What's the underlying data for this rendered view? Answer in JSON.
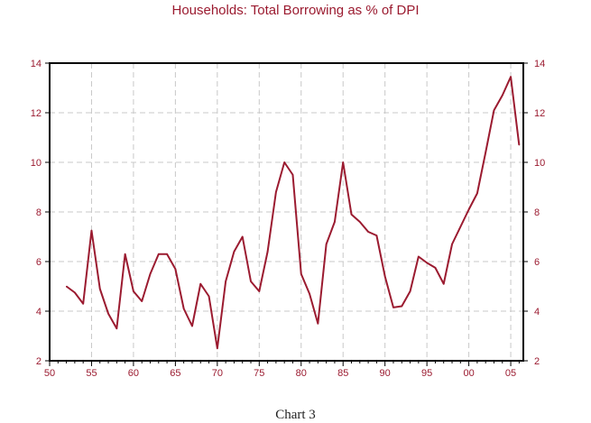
{
  "chart_data": {
    "type": "line",
    "title": "Households: Total Borrowing as % of DPI",
    "xlabel": "",
    "ylabel": "",
    "xlim": [
      1950,
      2006.5
    ],
    "ylim": [
      2,
      14
    ],
    "yticks": [
      2,
      4,
      6,
      8,
      10,
      12,
      14
    ],
    "xticks": [
      {
        "value": 1950,
        "label": "50"
      },
      {
        "value": 1955,
        "label": "55"
      },
      {
        "value": 1960,
        "label": "60"
      },
      {
        "value": 1965,
        "label": "65"
      },
      {
        "value": 1970,
        "label": "70"
      },
      {
        "value": 1975,
        "label": "75"
      },
      {
        "value": 1980,
        "label": "80"
      },
      {
        "value": 1985,
        "label": "85"
      },
      {
        "value": 1990,
        "label": "90"
      },
      {
        "value": 1995,
        "label": "95"
      },
      {
        "value": 2000,
        "label": "00"
      },
      {
        "value": 2005,
        "label": "05"
      }
    ],
    "grid": true,
    "line_color": "#9b1b30",
    "series": [
      {
        "x": [
          1952,
          1953,
          1954,
          1955,
          1956,
          1957,
          1958,
          1959,
          1960,
          1961,
          1962,
          1963,
          1964,
          1965,
          1966,
          1967,
          1968,
          1969,
          1970,
          1971,
          1972,
          1973,
          1974,
          1975,
          1976,
          1977,
          1978,
          1979,
          1980,
          1981,
          1982,
          1983,
          1984,
          1985,
          1986,
          1987,
          1988,
          1989,
          1990,
          1991,
          1992,
          1993,
          1994,
          1995,
          1996,
          1997,
          1998,
          1999,
          2000,
          2001,
          2002,
          2003,
          2004,
          2005,
          2006
        ],
        "values": [
          5.0,
          4.75,
          4.3,
          7.25,
          4.9,
          3.9,
          3.3,
          6.3,
          4.8,
          4.4,
          5.5,
          6.3,
          6.3,
          5.7,
          4.1,
          3.4,
          5.1,
          4.6,
          2.5,
          5.2,
          6.4,
          7.0,
          5.2,
          4.8,
          6.4,
          8.8,
          10.0,
          9.5,
          5.5,
          4.7,
          3.5,
          6.7,
          7.6,
          10.0,
          7.9,
          7.6,
          7.2,
          7.05,
          5.4,
          4.15,
          4.2,
          4.8,
          6.2,
          5.95,
          5.75,
          5.1,
          6.7,
          7.4,
          8.1,
          8.75,
          10.4,
          12.1,
          12.7,
          13.45,
          10.7
        ]
      }
    ]
  },
  "caption": "Chart 3"
}
